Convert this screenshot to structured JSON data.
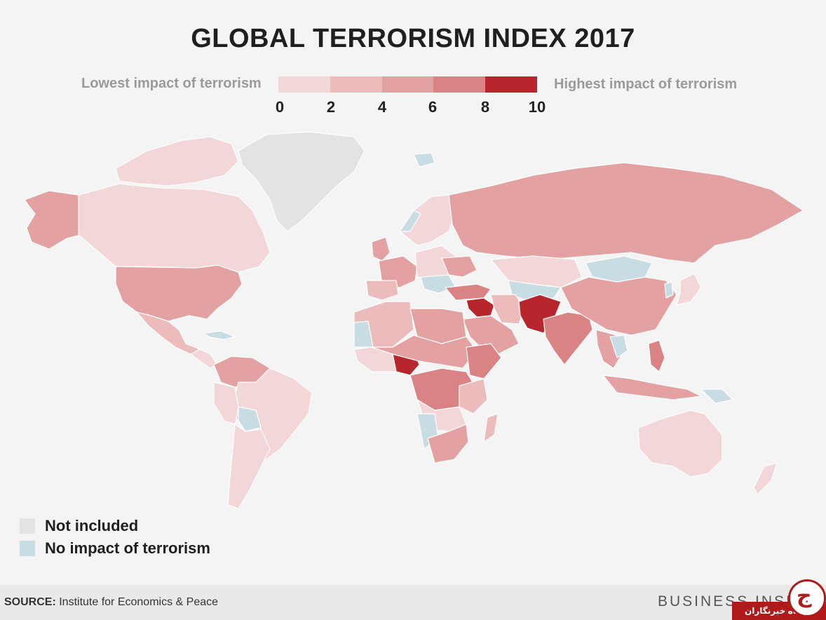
{
  "title": "GLOBAL TERRORISM INDEX 2017",
  "scale": {
    "low_label": "Lowest impact of terrorism",
    "high_label": "Highest impact of terrorism",
    "ticks": [
      "0",
      "2",
      "4",
      "6",
      "8",
      "10"
    ],
    "colors": [
      "#f3d7d8",
      "#ecbcbd",
      "#e3a1a2",
      "#d98384",
      "#b7262c"
    ]
  },
  "legend": {
    "not_included": "Not included",
    "no_impact": "No impact of terrorism",
    "not_included_color": "#e3e3e3",
    "no_impact_color": "#c8dce4"
  },
  "footer": {
    "source_label": "SOURCE:",
    "source_text": "Institute for Economics & Peace",
    "brand": "BUSINESS INSI",
    "badge_text": "باشگاه خبرنگاران"
  },
  "map_colors": {
    "level1": "#f3d7d8",
    "level2": "#ecbcbd",
    "level3": "#e3a1a2",
    "level4": "#d98384",
    "level5": "#b7262c",
    "none": "#c8dce4",
    "excluded": "#e3e3e3"
  }
}
